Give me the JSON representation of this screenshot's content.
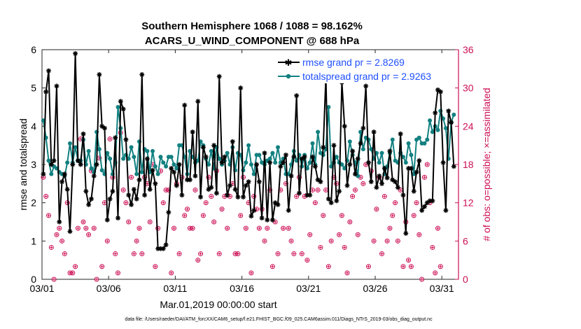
{
  "chart_data": {
    "type": "line",
    "title_line1": "Southern Hemisphere 1068 / 1088 = 98.162%",
    "title_line2": "ACARS_U_WIND_COMPONENT @ 688 hPa",
    "xlabel": "Mar.01,2019 00:00:00 start",
    "ylabel": "rmse and totalspread",
    "ylabel_right": "# of obs: o=possible; ×=assimilated",
    "footnote": "data file: /Users/raeder/DAI/ATM_forcXX/CAM6_setup/f.e21.FHIST_BGC.f09_025.CAM6assim.011/Diags_NTrS_2019-03/obs_diag_output.nc",
    "xlim": [
      0,
      31.25
    ],
    "ylim": [
      0,
      6
    ],
    "ylim_right": [
      0,
      36
    ],
    "x_ticks": [
      0,
      5,
      10,
      15,
      20,
      25,
      30
    ],
    "x_tick_labels": [
      "03/01",
      "03/06",
      "03/11",
      "03/16",
      "03/21",
      "03/26",
      "03/31"
    ],
    "y_ticks": [
      0,
      1,
      2,
      3,
      4,
      5,
      6
    ],
    "y_ticks_right": [
      0,
      6,
      12,
      18,
      24,
      30,
      36
    ],
    "colors": {
      "rmse": "#000000",
      "spread": "#128080",
      "obs": "#cc0f55",
      "legend_text": "#1f4fff"
    },
    "series": [
      {
        "name": "rmse",
        "legend": "rmse grand pr = 2.8269",
        "values": [
          2.75,
          4.9,
          5.45,
          3.0,
          3.1,
          5.05,
          1.5,
          2.55,
          2.75,
          2.35,
          1.25,
          3.0,
          5.9,
          3.1,
          3.0,
          3.8,
          2.3,
          1.95,
          2.1,
          2.7,
          3.0,
          5.35,
          4.0,
          3.95,
          1.55,
          2.1,
          2.3,
          3.7,
          1.6,
          4.65,
          4.45,
          3.65,
          2.2,
          1.95,
          2.35,
          2.1,
          2.6,
          5.35,
          2.2,
          3.15,
          2.35,
          2.85,
          2.5,
          0.8,
          0.8,
          0.8,
          0.9,
          1.75,
          2.9,
          2.8,
          2.45,
          3.0,
          2.2,
          4.55,
          2.6,
          2.6,
          3.85,
          2.7,
          4.65,
          2.15,
          3.45,
          3.2,
          2.35,
          2.4,
          3.5,
          2.25,
          5.3,
          3.05,
          3.2,
          2.2,
          2.45,
          3.6,
          2.35,
          2.15,
          5.0,
          2.15,
          2.45,
          2.55,
          1.65,
          1.8,
          3.0,
          2.55,
          1.6,
          3.3,
          1.55,
          3.05,
          1.55,
          2.0,
          1.95,
          2.95,
          3.05,
          3.25,
          1.8,
          2.7,
          3.2,
          4.8,
          2.25,
          3.15,
          3.2,
          2.2,
          2.2,
          3.2,
          2.95,
          2.6,
          2.55,
          3.45,
          5.3,
          2.1,
          2.0,
          3.5,
          2.05,
          2.3,
          5.15,
          4.0,
          2.45,
          3.0,
          3.35,
          2.75,
          3.15,
          3.55,
          3.95,
          5.05,
          3.05,
          2.55,
          3.85,
          2.4,
          2.7,
          2.5,
          2.9,
          2.65,
          3.35,
          2.6,
          2.55,
          2.4,
          3.8,
          2.2,
          1.2,
          2.9,
          2.9,
          2.3,
          2.8,
          3.1,
          1.8,
          1.9,
          2.0,
          2.05,
          2.05,
          4.35,
          4.95,
          4.9,
          3.05,
          1.8,
          4.4,
          4.1,
          2.95
        ],
        "x_step": 0.2
      },
      {
        "name": "totalspread",
        "legend": "totalspread grand pr = 2.9263",
        "values": [
          4.15,
          3.7,
          3.1,
          2.75,
          2.95,
          2.9,
          2.8,
          2.75,
          2.7,
          3.05,
          3.55,
          3.05,
          3.45,
          3.1,
          3.1,
          3.65,
          3.0,
          3.35,
          2.9,
          2.8,
          3.85,
          3.4,
          2.85,
          2.75,
          3.3,
          3.15,
          2.75,
          3.05,
          4.5,
          3.95,
          3.15,
          3.25,
          3.15,
          3.45,
          3.2,
          2.75,
          3.6,
          2.8,
          3.4,
          3.35,
          2.8,
          3.35,
          2.95,
          2.75,
          3.2,
          3.05,
          2.95,
          3.2,
          3.2,
          3.0,
          2.9,
          3.5,
          3.5,
          3.2,
          2.75,
          3.35,
          3.2,
          3.05,
          3.1,
          3.6,
          3.5,
          3.15,
          3.0,
          3.35,
          2.9,
          3.45,
          3.15,
          3.0,
          3.1,
          3.3,
          3.0,
          3.45,
          2.85,
          3.3,
          3.25,
          2.85,
          3.05,
          3.5,
          3.0,
          2.75,
          3.25,
          3.25,
          3.05,
          3.0,
          3.1,
          3.15,
          3.3,
          3.05,
          3.45,
          3.05,
          3.15,
          2.75,
          2.75,
          3.0,
          3.35,
          3.1,
          3.25,
          2.95,
          3.25,
          2.9,
          3.05,
          3.55,
          3.0,
          3.85,
          3.3,
          3.25,
          3.4,
          4.5,
          2.95,
          3.05,
          3.2,
          3.05,
          3.0,
          2.9,
          3.1,
          3.6,
          3.25,
          3.05,
          2.7,
          3.85,
          3.4,
          3.7,
          3.65,
          3.4,
          3.15,
          3.3,
          3.05,
          3.3,
          2.75,
          2.95,
          3.3,
          3.65,
          3.1,
          3.05,
          3.3,
          3.2,
          3.05,
          3.55,
          3.25,
          2.75,
          3.65,
          3.7,
          3.55,
          3.55,
          3.65,
          4.15,
          3.85,
          4.0,
          3.9,
          4.4,
          4.2,
          3.95,
          3.15,
          4.1,
          4.3
        ],
        "x_step": 0.2
      },
      {
        "name": "obs_possible",
        "values": [
          16,
          13,
          10,
          5,
          0,
          7,
          8,
          6,
          4,
          12,
          1,
          1,
          2,
          8,
          22,
          9,
          8,
          7,
          17,
          8,
          0,
          19,
          2,
          12,
          6,
          22,
          16,
          4,
          1,
          23,
          14,
          12,
          9,
          16,
          4,
          6,
          8,
          4,
          16,
          15,
          9,
          18,
          2,
          8,
          17,
          12,
          14,
          14,
          1,
          8,
          15,
          4,
          16,
          10,
          11,
          8,
          8,
          14,
          3,
          4,
          10,
          12,
          16,
          13,
          9,
          17,
          4,
          11,
          13,
          8,
          13,
          15,
          4,
          4,
          10,
          16,
          8,
          12,
          1,
          13,
          11,
          8,
          11,
          6,
          8,
          14,
          2,
          9,
          4,
          14,
          8,
          15,
          8,
          6,
          4,
          13,
          16,
          4,
          13,
          3,
          7,
          14,
          12,
          14,
          5,
          10,
          14,
          2,
          6,
          16,
          15,
          7,
          10,
          5,
          1,
          9,
          13,
          14,
          7,
          16,
          15,
          18,
          2,
          17,
          6,
          11,
          16,
          4,
          13,
          6,
          8,
          10,
          12,
          6,
          14,
          2,
          9,
          3,
          2,
          10,
          12,
          7,
          0,
          16,
          18,
          12,
          5,
          1,
          8,
          2
        ],
        "x_step": 0.2
      }
    ]
  }
}
